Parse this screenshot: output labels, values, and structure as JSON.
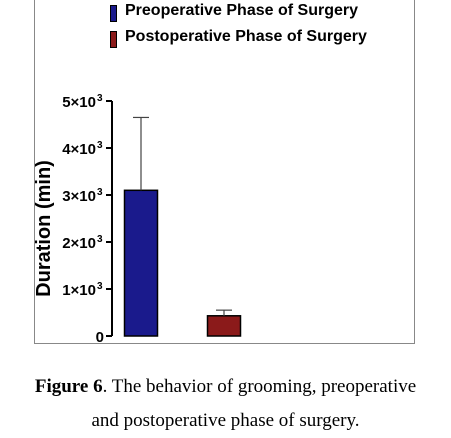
{
  "chart_data": {
    "type": "bar",
    "categories": [
      "Preoperative Phase of Surgery",
      "Postoperative Phase of Surgery"
    ],
    "values": [
      3100,
      430
    ],
    "errors": [
      1550,
      120
    ],
    "ylabel": "Duration (min)",
    "ylim": [
      0,
      5000
    ],
    "yticks": [
      0,
      1000,
      2000,
      3000,
      4000,
      5000
    ],
    "ytick_labels": [
      "0",
      "1×10",
      "2×10",
      "3×10",
      "4×10",
      "5×10"
    ],
    "ytick_exponent": "3",
    "legend": [
      {
        "label": "Preoperative Phase of Surgery",
        "color": "#1a1a8c"
      },
      {
        "label": "Postoperative Phase of Surgery",
        "color": "#8b1a1a"
      }
    ],
    "colors": [
      "#1a1a8c",
      "#8b1a1a"
    ],
    "legend_position": "top"
  },
  "caption": {
    "figure_label": "Figure 6",
    "line1_rest": ". The behavior of grooming, preoperative",
    "line2": "and postoperative phase of surgery."
  }
}
